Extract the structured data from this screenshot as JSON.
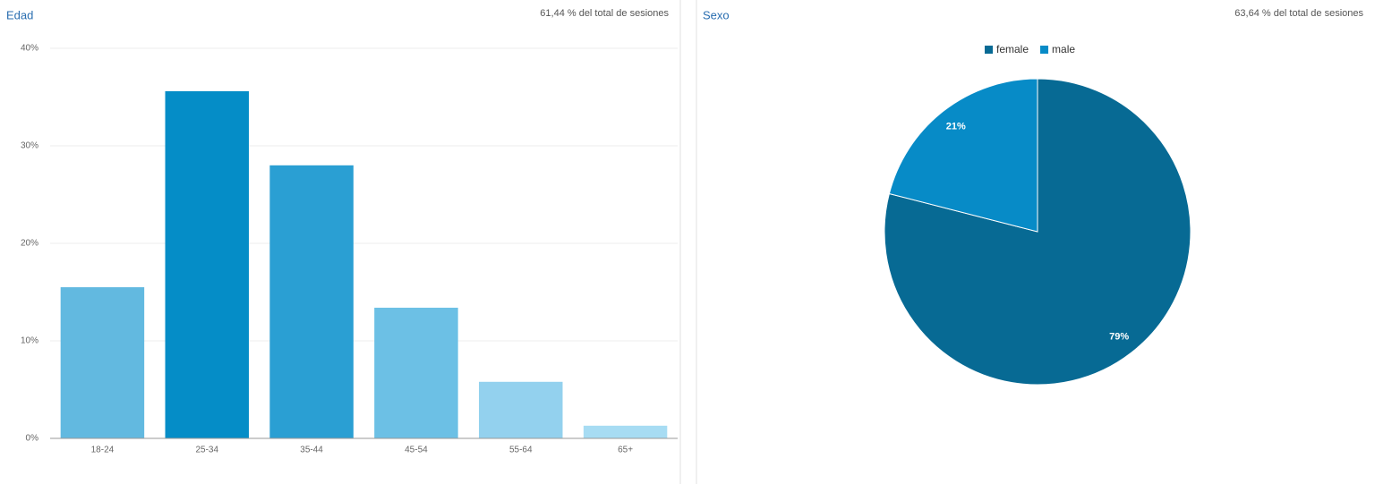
{
  "chart_data": [
    {
      "type": "bar",
      "title": "Edad",
      "subtitle": "61,44 % del total de sesiones",
      "categories": [
        "18-24",
        "25-34",
        "35-44",
        "45-54",
        "55-64",
        "65+"
      ],
      "values": [
        15.5,
        35.6,
        28.0,
        13.4,
        5.8,
        1.3
      ],
      "colors": [
        "#62b9e0",
        "#058dc7",
        "#2a9fd3",
        "#6cc0e5",
        "#93d1ee",
        "#a7dcf3"
      ],
      "ylim": [
        0,
        40
      ],
      "yticks": [
        {
          "value": 0,
          "label": "0%"
        },
        {
          "value": 10,
          "label": "10%"
        },
        {
          "value": 20,
          "label": "20%"
        },
        {
          "value": 30,
          "label": "30%"
        },
        {
          "value": 40,
          "label": "40%"
        }
      ],
      "grid": true
    },
    {
      "type": "pie",
      "title": "Sexo",
      "subtitle": "63,64 % del total de sesiones",
      "categories": [
        "female",
        "male"
      ],
      "values": [
        79,
        21
      ],
      "value_labels": [
        "79%",
        "21%"
      ],
      "colors": [
        "#076a94",
        "#078bc7"
      ],
      "legend": "top"
    }
  ]
}
